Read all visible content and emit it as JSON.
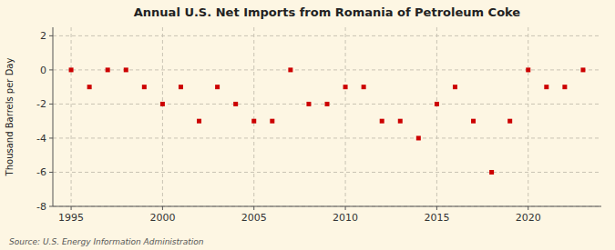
{
  "chart_data": {
    "type": "scatter",
    "title": "Annual U.S. Net Imports from Romania of Petroleum Coke",
    "ylabel": "Thousand Barrels per Day",
    "annotations": [
      "Source: U.S. Energy Information Administration"
    ],
    "x": [
      1995,
      1996,
      1997,
      1998,
      1999,
      2000,
      2001,
      2002,
      2003,
      2004,
      2005,
      2006,
      2007,
      2008,
      2009,
      2010,
      2011,
      2012,
      2013,
      2014,
      2015,
      2016,
      2017,
      2018,
      2019,
      2020,
      2021,
      2022,
      2023
    ],
    "values": [
      0,
      -1,
      0,
      0,
      -1,
      -2,
      -1,
      -3,
      -1,
      -2,
      -3,
      -3,
      0,
      -2,
      -2,
      -1,
      -1,
      -3,
      -3,
      -4,
      -2,
      -1,
      -3,
      -6,
      -3,
      0,
      -1,
      -1,
      0
    ],
    "color": "#cc0000",
    "marker": "square",
    "grid": true,
    "xlim": [
      1994.0,
      2024.0
    ],
    "ylim": [
      -8,
      2.5
    ],
    "xticks": [
      1995,
      2000,
      2005,
      2010,
      2015,
      2020
    ],
    "yticks": [
      -8,
      -6,
      -4,
      -2,
      0,
      2
    ]
  }
}
